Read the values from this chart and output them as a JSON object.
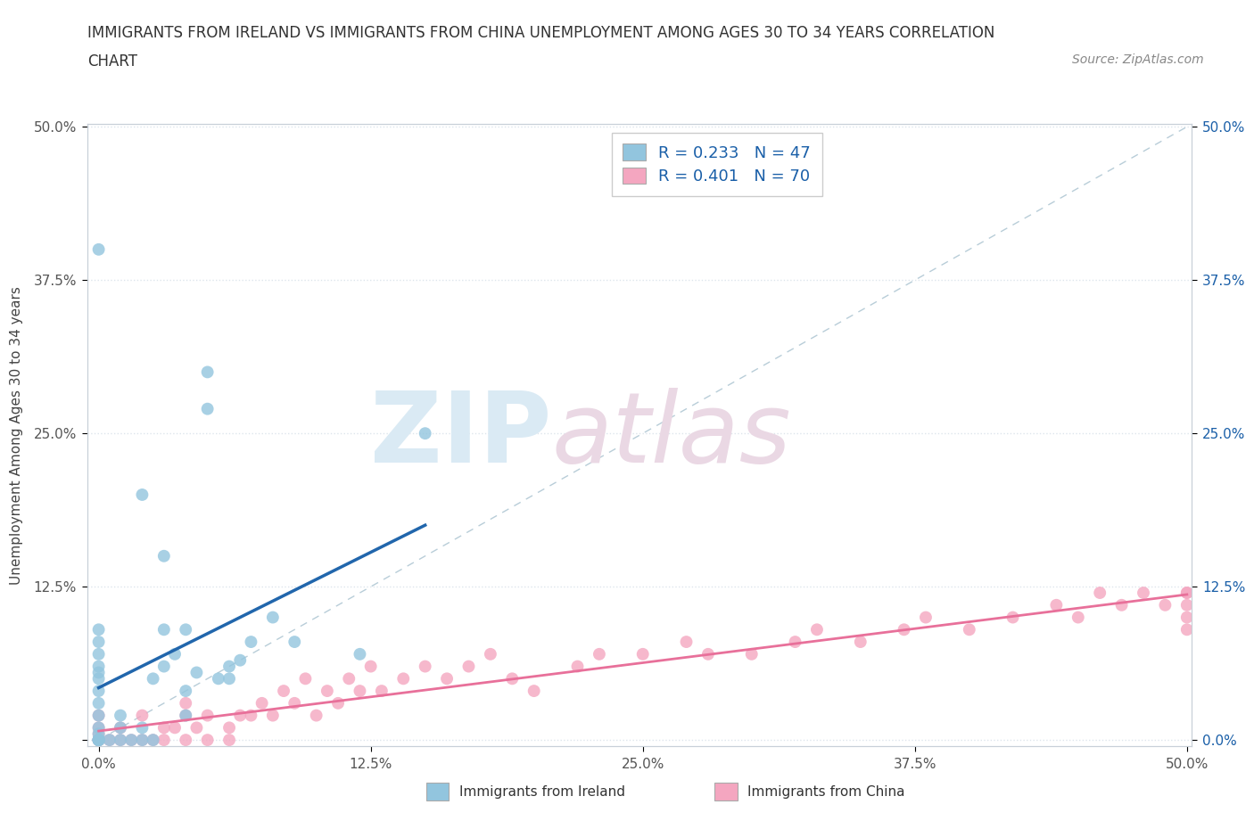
{
  "title_line1": "IMMIGRANTS FROM IRELAND VS IMMIGRANTS FROM CHINA UNEMPLOYMENT AMONG AGES 30 TO 34 YEARS CORRELATION",
  "title_line2": "CHART",
  "source": "Source: ZipAtlas.com",
  "ylabel": "Unemployment Among Ages 30 to 34 years",
  "xlim": [
    -0.005,
    0.502
  ],
  "ylim": [
    -0.005,
    0.502
  ],
  "xtick_vals": [
    0.0,
    0.125,
    0.25,
    0.375,
    0.5
  ],
  "ytick_vals": [
    0.0,
    0.125,
    0.25,
    0.375,
    0.5
  ],
  "xticklabels": [
    "0.0%",
    "12.5%",
    "25.0%",
    "37.5%",
    "50.0%"
  ],
  "yticklabels_left": [
    "",
    "12.5%",
    "25.0%",
    "37.5%",
    "50.0%"
  ],
  "yticklabels_right": [
    "0.0%",
    "12.5%",
    "25.0%",
    "37.5%",
    "50.0%"
  ],
  "ireland_color": "#92c5de",
  "china_color": "#f4a6c0",
  "ireland_line_color": "#2166ac",
  "china_line_color": "#e8709a",
  "diag_line_color": "#b8cdd8",
  "legend_text_color": "#1a5fa8",
  "legend_ireland_label": "R = 0.233   N = 47",
  "legend_china_label": "R = 0.401   N = 70",
  "bottom_legend_ireland": "Immigrants from Ireland",
  "bottom_legend_china": "Immigrants from China",
  "grid_color": "#dde5ec",
  "title_color": "#333333",
  "tick_color": "#555555",
  "right_tick_color": "#1a5fa8",
  "background_color": "#ffffff",
  "ireland_x": [
    0.0,
    0.0,
    0.0,
    0.0,
    0.0,
    0.0,
    0.0,
    0.0,
    0.0,
    0.0,
    0.0,
    0.0,
    0.0,
    0.0,
    0.0,
    0.0,
    0.0,
    0.0,
    0.005,
    0.01,
    0.01,
    0.01,
    0.015,
    0.02,
    0.02,
    0.02,
    0.025,
    0.025,
    0.03,
    0.03,
    0.03,
    0.035,
    0.04,
    0.04,
    0.04,
    0.045,
    0.05,
    0.05,
    0.055,
    0.06,
    0.06,
    0.065,
    0.07,
    0.08,
    0.09,
    0.12,
    0.15
  ],
  "ireland_y": [
    0.0,
    0.0,
    0.0,
    0.0,
    0.0,
    0.0,
    0.005,
    0.01,
    0.02,
    0.03,
    0.04,
    0.05,
    0.055,
    0.06,
    0.07,
    0.08,
    0.09,
    0.4,
    0.0,
    0.0,
    0.01,
    0.02,
    0.0,
    0.0,
    0.01,
    0.2,
    0.0,
    0.05,
    0.06,
    0.09,
    0.15,
    0.07,
    0.02,
    0.04,
    0.09,
    0.055,
    0.27,
    0.3,
    0.05,
    0.05,
    0.06,
    0.065,
    0.08,
    0.1,
    0.08,
    0.07,
    0.25
  ],
  "china_x": [
    0.0,
    0.0,
    0.0,
    0.0,
    0.0,
    0.0,
    0.0,
    0.005,
    0.01,
    0.01,
    0.015,
    0.02,
    0.02,
    0.025,
    0.03,
    0.03,
    0.035,
    0.04,
    0.04,
    0.04,
    0.045,
    0.05,
    0.05,
    0.06,
    0.06,
    0.065,
    0.07,
    0.075,
    0.08,
    0.085,
    0.09,
    0.095,
    0.1,
    0.105,
    0.11,
    0.115,
    0.12,
    0.125,
    0.13,
    0.14,
    0.15,
    0.16,
    0.17,
    0.18,
    0.19,
    0.2,
    0.22,
    0.23,
    0.25,
    0.27,
    0.28,
    0.3,
    0.32,
    0.33,
    0.35,
    0.37,
    0.38,
    0.4,
    0.42,
    0.44,
    0.45,
    0.46,
    0.47,
    0.48,
    0.49,
    0.5,
    0.5,
    0.5,
    0.5,
    0.5
  ],
  "china_y": [
    0.0,
    0.0,
    0.0,
    0.0,
    0.005,
    0.01,
    0.02,
    0.0,
    0.0,
    0.01,
    0.0,
    0.0,
    0.02,
    0.0,
    0.0,
    0.01,
    0.01,
    0.0,
    0.02,
    0.03,
    0.01,
    0.0,
    0.02,
    0.0,
    0.01,
    0.02,
    0.02,
    0.03,
    0.02,
    0.04,
    0.03,
    0.05,
    0.02,
    0.04,
    0.03,
    0.05,
    0.04,
    0.06,
    0.04,
    0.05,
    0.06,
    0.05,
    0.06,
    0.07,
    0.05,
    0.04,
    0.06,
    0.07,
    0.07,
    0.08,
    0.07,
    0.07,
    0.08,
    0.09,
    0.08,
    0.09,
    0.1,
    0.09,
    0.1,
    0.11,
    0.1,
    0.12,
    0.11,
    0.12,
    0.11,
    0.09,
    0.1,
    0.11,
    0.12,
    0.12
  ]
}
